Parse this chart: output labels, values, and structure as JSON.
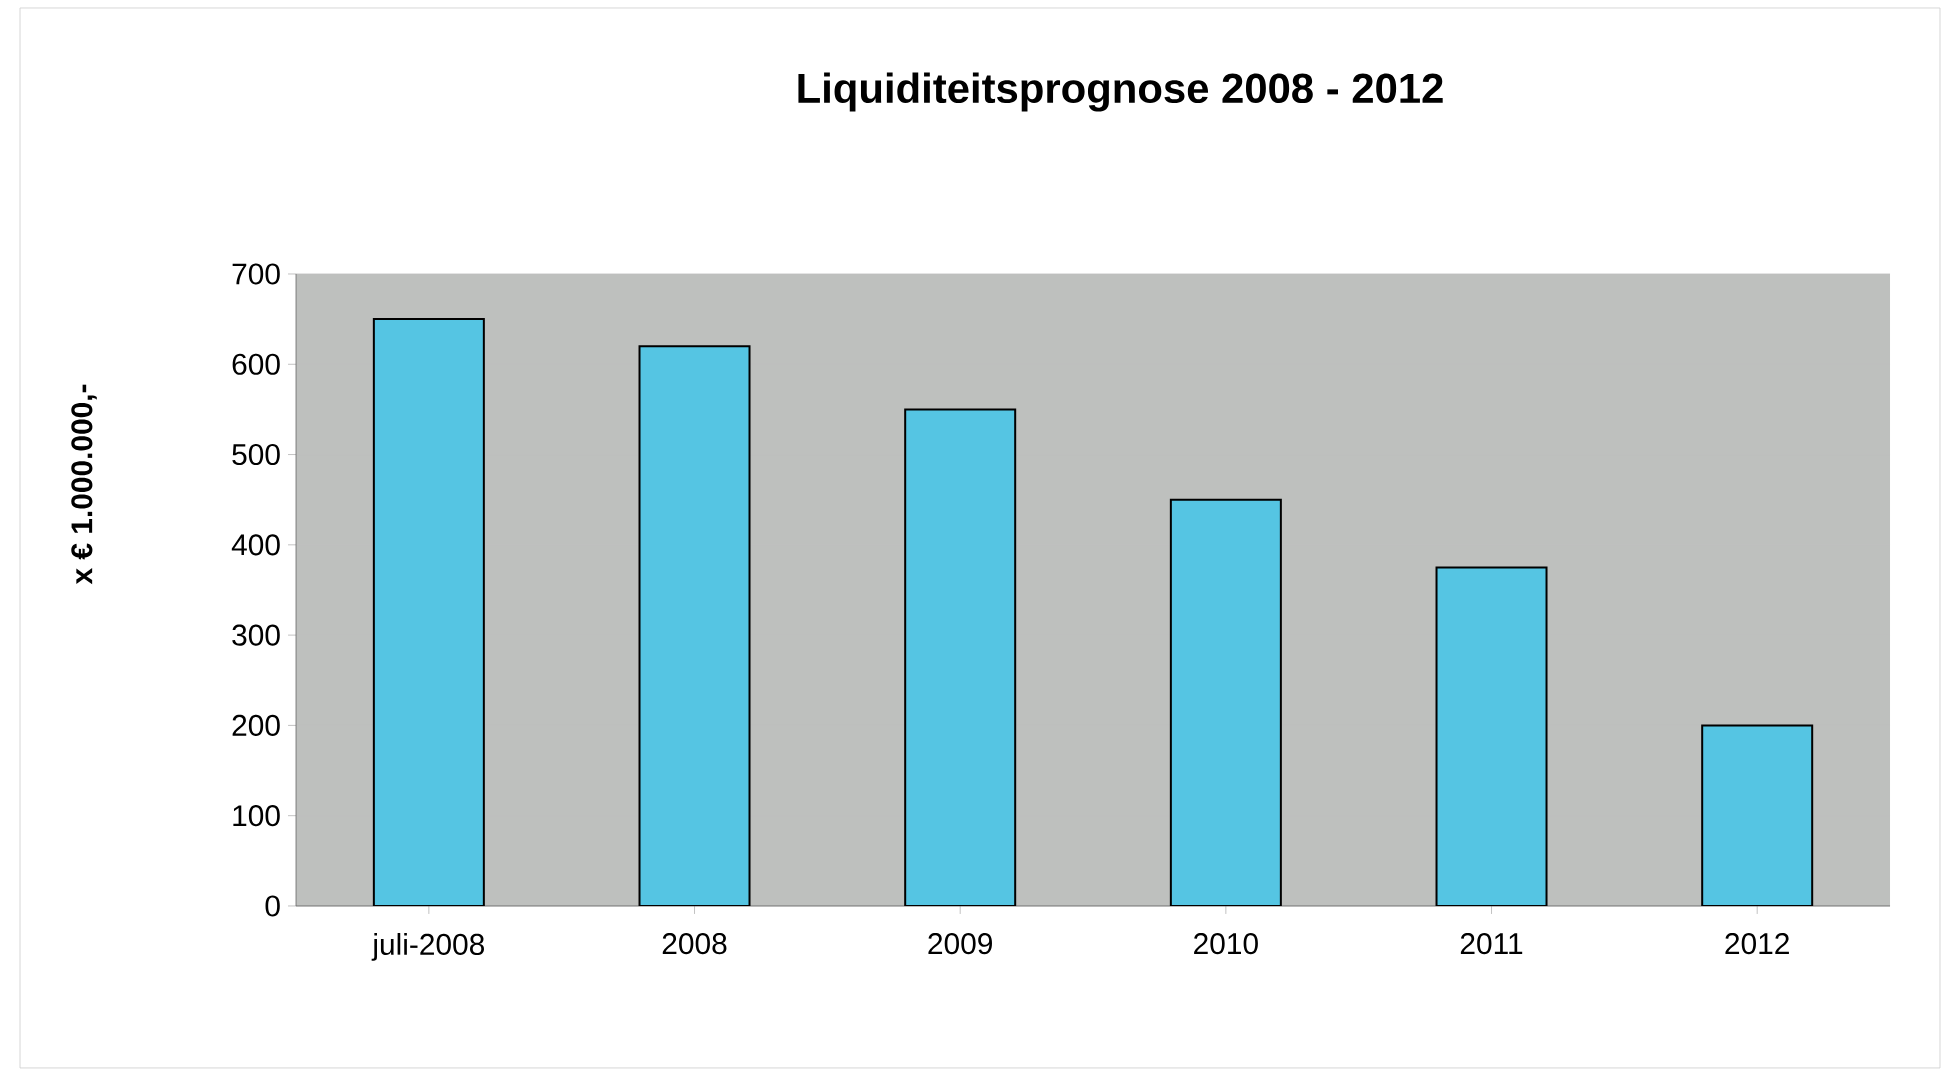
{
  "chart_data": {
    "type": "bar",
    "title": "Liquiditeitsprognose 2008 - 2012",
    "ylabel": "x € 1.000.000,-",
    "categories": [
      "juli-2008",
      "2008",
      "2009",
      "2010",
      "2011",
      "2012"
    ],
    "values": [
      650,
      620,
      550,
      450,
      375,
      200
    ],
    "color": "#55c5e3",
    "ylim": [
      0,
      700
    ],
    "yticks": [
      0,
      100,
      200,
      300,
      400,
      500,
      600,
      700
    ],
    "grid": "y"
  }
}
